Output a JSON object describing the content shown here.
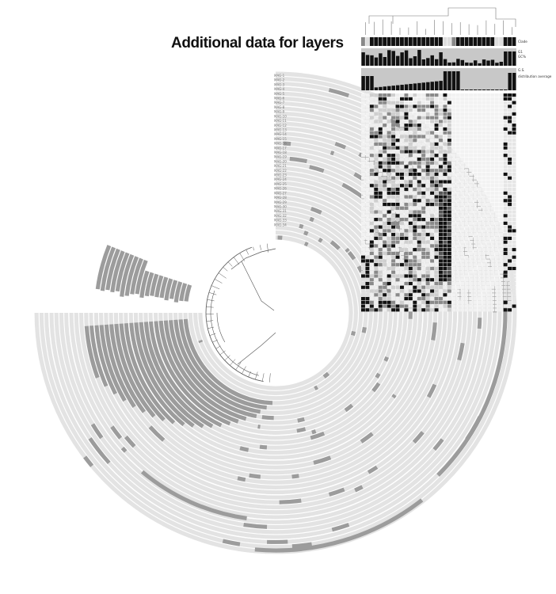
{
  "title": "Additional data for layers",
  "layer_headers": [
    "Clade",
    "G1",
    "GC%",
    "G.S.",
    "distribution average"
  ],
  "layer_names": [
    "MAG-1",
    "MAG-2",
    "MAG-3",
    "MAG-4",
    "MAG-5",
    "MAG-6",
    "MAG-7",
    "MAG-8",
    "MAG-9",
    "MAG-10",
    "MAG-11",
    "MAG-12",
    "MAG-13",
    "MAG-14",
    "MAG-15",
    "MAG-16",
    "MAG-17",
    "MAG-18",
    "MAG-19",
    "MAG-20",
    "MAG-21",
    "MAG-22",
    "MAG-23",
    "MAG-24",
    "MAG-25",
    "MAG-26",
    "MAG-27",
    "MAG-28",
    "MAG-29",
    "MAG-30",
    "MAG-31",
    "MAG-32",
    "MAG-33",
    "MAG-34"
  ],
  "colors": {
    "ring_bg": "#e3e3e3",
    "ring_hit": "#9c9c9c",
    "bar": "#111111",
    "panel_bg": "#c8c8c8",
    "tree": "#555555"
  }
}
